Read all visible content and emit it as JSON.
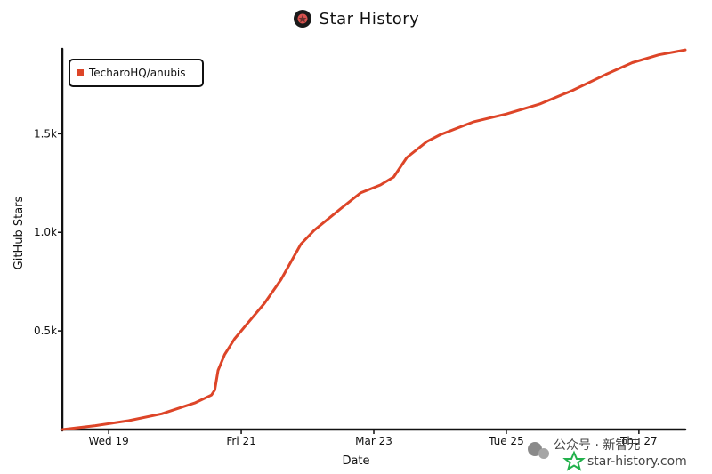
{
  "header": {
    "title": "Star History"
  },
  "watermark": {
    "wechat": "公众号 · 新智元",
    "site": "star-history.com"
  },
  "chart_data": {
    "type": "line",
    "title": "Star History",
    "xlabel": "Date",
    "ylabel": "GitHub Stars",
    "x_tick_labels": [
      "Wed 19",
      "Fri 21",
      "Mar 23",
      "Tue 25",
      "Thu 27"
    ],
    "x_tick_positions": [
      1,
      3,
      5,
      7,
      9
    ],
    "y_tick_labels": [
      "0.5k",
      "1.0k",
      "1.5k"
    ],
    "y_ticks": [
      500,
      1000,
      1500
    ],
    "xlim": [
      0.3,
      9.7
    ],
    "ylim": [
      0,
      1930
    ],
    "grid": false,
    "legend_position": "top-left",
    "color": "#dd4528",
    "series": [
      {
        "name": "TecharoHQ/anubis",
        "x": [
          0.3,
          0.8,
          1.3,
          1.8,
          2.3,
          2.55,
          2.6,
          2.65,
          2.75,
          2.9,
          3.1,
          3.35,
          3.6,
          3.9,
          4.1,
          4.5,
          4.8,
          5.1,
          5.3,
          5.5,
          5.8,
          6.0,
          6.5,
          7.0,
          7.5,
          8.0,
          8.5,
          8.9,
          9.3,
          9.7
        ],
        "y": [
          0,
          20,
          45,
          80,
          135,
          175,
          200,
          300,
          380,
          460,
          540,
          640,
          760,
          940,
          1010,
          1120,
          1200,
          1240,
          1280,
          1380,
          1460,
          1495,
          1560,
          1600,
          1650,
          1720,
          1800,
          1860,
          1900,
          1925
        ]
      }
    ]
  }
}
